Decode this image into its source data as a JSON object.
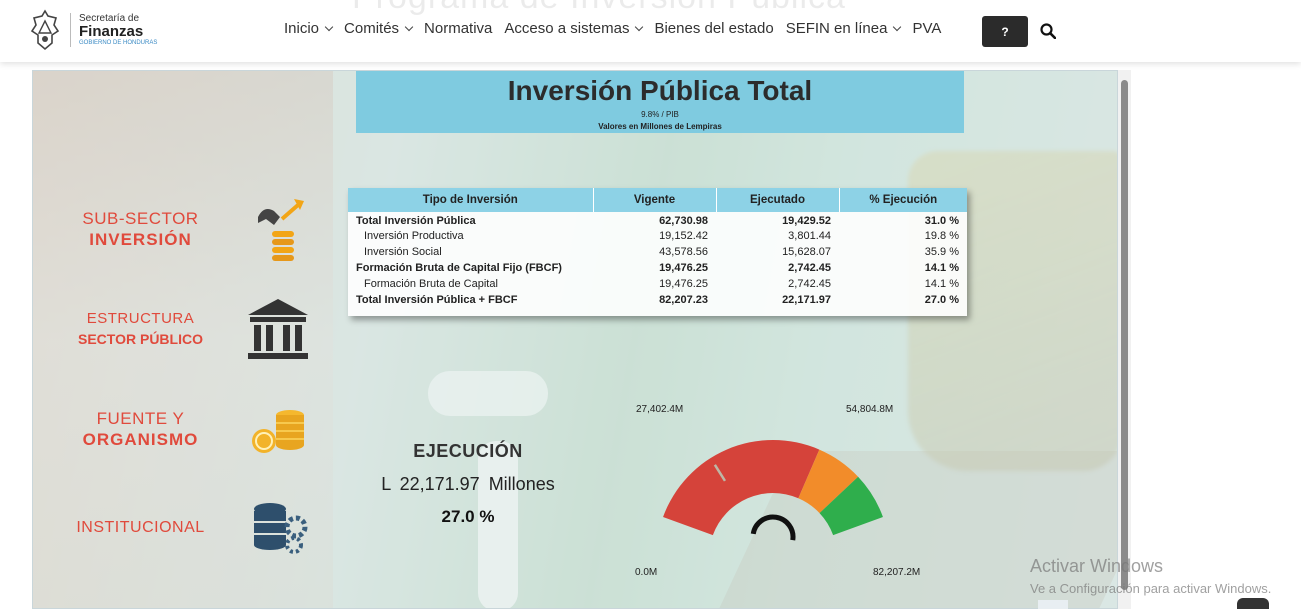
{
  "header": {
    "ghost_title": "Programa de Inversión Pública",
    "logo": {
      "line1": "Secretaría de",
      "line2": "Finanzas",
      "line3": "GOBIERNO DE HONDURAS"
    },
    "nav": [
      {
        "label": "Inicio",
        "has_dropdown": true
      },
      {
        "label": "Comités",
        "has_dropdown": true
      },
      {
        "label": "Normativa",
        "has_dropdown": false
      },
      {
        "label": "Acceso a sistemas",
        "has_dropdown": true
      },
      {
        "label": "Bienes del estado",
        "has_dropdown": false
      },
      {
        "label": "SEFIN en línea",
        "has_dropdown": true
      },
      {
        "label": "PVA",
        "has_dropdown": false
      }
    ],
    "help_label": "?",
    "search_icon": "search-icon"
  },
  "report": {
    "title": "Inversión Pública Total",
    "subtitle": "9.8% / PIB",
    "units": "Valores en Millones de Lempiras",
    "side_menu": [
      {
        "line1": "SUB-SECTOR",
        "line2": "INVERSIÓN",
        "icon": "investment-icon"
      },
      {
        "line1": "ESTRUCTURA",
        "line2": "SECTOR PÚBLICO",
        "icon": "bank-icon"
      },
      {
        "line1": "FUENTE Y",
        "line2": "ORGANISMO",
        "icon": "coins-icon"
      },
      {
        "line1": "INSTITUCIONAL",
        "line2": "",
        "icon": "database-gear-icon"
      }
    ],
    "table": {
      "headers": [
        "Tipo de Inversión",
        "Vigente",
        "Ejecutado",
        "% Ejecución"
      ],
      "rows": [
        {
          "label": "Total Inversión Pública",
          "vigente": "62,730.98",
          "ejecutado": "19,429.52",
          "pct": "31.0 %",
          "bold": true
        },
        {
          "label": "Inversión Productiva",
          "vigente": "19,152.42",
          "ejecutado": "3,801.44",
          "pct": "19.8 %",
          "bold": false
        },
        {
          "label": "Inversión Social",
          "vigente": "43,578.56",
          "ejecutado": "15,628.07",
          "pct": "35.9 %",
          "bold": false
        },
        {
          "label": "Formación Bruta de Capital Fijo (FBCF)",
          "vigente": "19,476.25",
          "ejecutado": "2,742.45",
          "pct": "14.1 %",
          "bold": true
        },
        {
          "label": "Formación Bruta de Capital",
          "vigente": "19,476.25",
          "ejecutado": "2,742.45",
          "pct": "14.1 %",
          "bold": false
        },
        {
          "label": "Total Inversión Pública + FBCF",
          "vigente": "82,207.23",
          "ejecutado": "22,171.97",
          "pct": "27.0 %",
          "bold": true
        }
      ]
    },
    "execution": {
      "title": "EJECUCIÓN",
      "value": "L  22,171.97  Millones",
      "percent": "27.0 %"
    },
    "gauge": {
      "labels": {
        "min": "0.0M",
        "t1": "27,402.4M",
        "t2": "54,804.8M",
        "max": "82,207.2M"
      },
      "min": 0,
      "max": 82207.2,
      "value": 22171.97,
      "bands": [
        {
          "from": 0,
          "to": 54804.8,
          "color": "#d5433a"
        },
        {
          "from": 54804.8,
          "to": 68506.0,
          "color": "#f28c2a"
        },
        {
          "from": 68506.0,
          "to": 82207.2,
          "color": "#2fae4c"
        }
      ]
    }
  },
  "watermark": {
    "line1": "Activar Windows",
    "line2": "Ve a Configuración para activar Windows."
  }
}
